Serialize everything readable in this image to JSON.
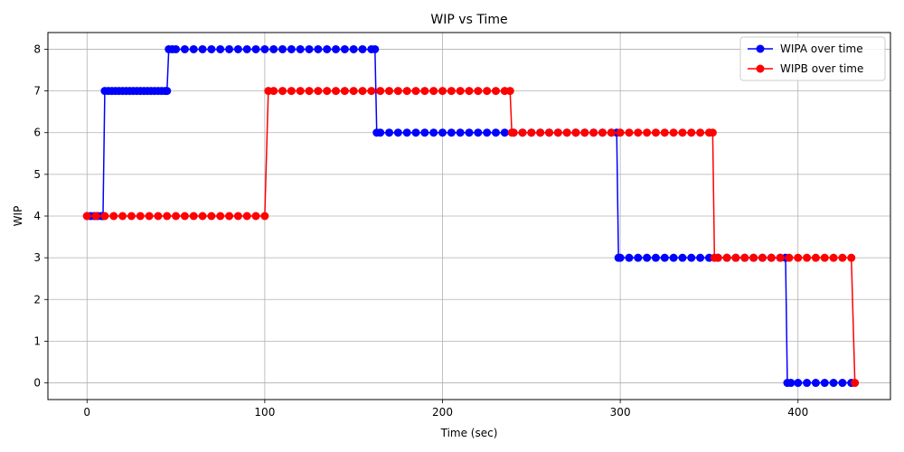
{
  "chart_data": {
    "type": "line",
    "title": "WIP vs Time",
    "xlabel": "Time (sec)",
    "ylabel": "WIP",
    "xlim": [
      -22,
      452
    ],
    "ylim": [
      -0.4,
      8.4
    ],
    "xticks": [
      0,
      100,
      200,
      300,
      400
    ],
    "yticks": [
      0,
      1,
      2,
      3,
      4,
      5,
      6,
      7,
      8
    ],
    "grid": true,
    "legend_position": "top-right",
    "series": [
      {
        "name": "WIPA over time",
        "color": "#0000ff",
        "marker": "circle",
        "x": [
          0,
          2,
          4,
          6,
          8,
          9,
          10,
          12,
          14,
          16,
          18,
          20,
          22,
          24,
          26,
          28,
          30,
          32,
          34,
          36,
          38,
          40,
          42,
          44,
          45,
          46,
          48,
          50,
          55,
          60,
          65,
          70,
          75,
          80,
          85,
          90,
          95,
          100,
          105,
          110,
          115,
          120,
          125,
          130,
          135,
          140,
          145,
          150,
          155,
          160,
          162,
          163,
          165,
          170,
          175,
          180,
          185,
          190,
          195,
          200,
          205,
          210,
          215,
          220,
          225,
          230,
          235,
          240,
          245,
          250,
          255,
          260,
          265,
          270,
          275,
          280,
          285,
          290,
          295,
          298,
          299,
          300,
          305,
          310,
          315,
          320,
          325,
          330,
          335,
          340,
          345,
          350,
          355,
          360,
          365,
          370,
          375,
          380,
          385,
          390,
          393,
          394,
          396,
          400,
          405,
          410,
          415,
          420,
          425,
          430
        ],
        "y": [
          4,
          4,
          4,
          4,
          4,
          4,
          7,
          7,
          7,
          7,
          7,
          7,
          7,
          7,
          7,
          7,
          7,
          7,
          7,
          7,
          7,
          7,
          7,
          7,
          7,
          8,
          8,
          8,
          8,
          8,
          8,
          8,
          8,
          8,
          8,
          8,
          8,
          8,
          8,
          8,
          8,
          8,
          8,
          8,
          8,
          8,
          8,
          8,
          8,
          8,
          8,
          6,
          6,
          6,
          6,
          6,
          6,
          6,
          6,
          6,
          6,
          6,
          6,
          6,
          6,
          6,
          6,
          6,
          6,
          6,
          6,
          6,
          6,
          6,
          6,
          6,
          6,
          6,
          6,
          6,
          3,
          3,
          3,
          3,
          3,
          3,
          3,
          3,
          3,
          3,
          3,
          3,
          3,
          3,
          3,
          3,
          3,
          3,
          3,
          3,
          3,
          0,
          0,
          0,
          0,
          0,
          0,
          0,
          0,
          0
        ]
      },
      {
        "name": "WIPB over time",
        "color": "#ff0000",
        "marker": "circle",
        "x": [
          0,
          5,
          10,
          15,
          20,
          25,
          30,
          35,
          40,
          45,
          50,
          55,
          60,
          65,
          70,
          75,
          80,
          85,
          90,
          95,
          100,
          102,
          105,
          110,
          115,
          120,
          125,
          130,
          135,
          140,
          145,
          150,
          155,
          160,
          165,
          170,
          175,
          180,
          185,
          190,
          195,
          200,
          205,
          210,
          215,
          220,
          225,
          230,
          235,
          238,
          239,
          240,
          245,
          250,
          255,
          260,
          265,
          270,
          275,
          280,
          285,
          290,
          295,
          300,
          305,
          310,
          315,
          320,
          325,
          330,
          335,
          340,
          345,
          350,
          352,
          353,
          355,
          360,
          365,
          370,
          375,
          380,
          385,
          390,
          395,
          400,
          405,
          410,
          415,
          420,
          425,
          430,
          432
        ],
        "y": [
          4,
          4,
          4,
          4,
          4,
          4,
          4,
          4,
          4,
          4,
          4,
          4,
          4,
          4,
          4,
          4,
          4,
          4,
          4,
          4,
          4,
          7,
          7,
          7,
          7,
          7,
          7,
          7,
          7,
          7,
          7,
          7,
          7,
          7,
          7,
          7,
          7,
          7,
          7,
          7,
          7,
          7,
          7,
          7,
          7,
          7,
          7,
          7,
          7,
          7,
          6,
          6,
          6,
          6,
          6,
          6,
          6,
          6,
          6,
          6,
          6,
          6,
          6,
          6,
          6,
          6,
          6,
          6,
          6,
          6,
          6,
          6,
          6,
          6,
          6,
          3,
          3,
          3,
          3,
          3,
          3,
          3,
          3,
          3,
          3,
          3,
          3,
          3,
          3,
          3,
          3,
          3,
          0
        ]
      }
    ]
  }
}
